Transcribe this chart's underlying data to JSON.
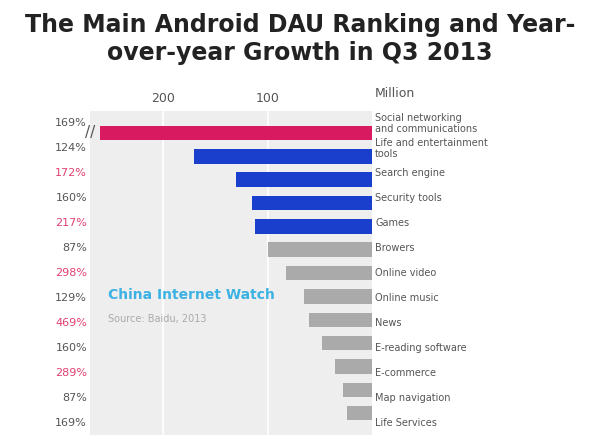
{
  "title": "The Main Android DAU Ranking and Year-\nover-year Growth in Q3 2013",
  "categories": [
    "Social networking\nand communications",
    "Life and entertainment\ntools",
    "Search engine",
    "Security tools",
    "Games",
    "Browers",
    "Online video",
    "Online music",
    "News",
    "E-reading software",
    "E-commerce",
    "Map navigation",
    "Life Services"
  ],
  "values": [
    260,
    170,
    130,
    115,
    112,
    100,
    82,
    65,
    60,
    48,
    35,
    28,
    24
  ],
  "bar_colors": [
    "#d81b60",
    "#1a3fcc",
    "#1a3fcc",
    "#1a3fcc",
    "#1a3fcc",
    "#aaaaaa",
    "#aaaaaa",
    "#aaaaaa",
    "#aaaaaa",
    "#aaaaaa",
    "#aaaaaa",
    "#aaaaaa",
    "#aaaaaa"
  ],
  "growth_labels": [
    "169%",
    "124%",
    "172%",
    "160%",
    "217%",
    "87%",
    "298%",
    "129%",
    "469%",
    "160%",
    "289%",
    "87%",
    "169%"
  ],
  "growth_colors": [
    "#555555",
    "#555555",
    "#e04070",
    "#555555",
    "#e04070",
    "#555555",
    "#e04070",
    "#555555",
    "#e04070",
    "#555555",
    "#e04070",
    "#555555",
    "#555555"
  ],
  "x_axis_ticks": [
    200,
    100
  ],
  "xlim_max": 270,
  "bg_color": "#eeeeee",
  "title_fontsize": 17,
  "watermark_text": "China Internet Watch",
  "source_text": "Source: Baidu, 2013",
  "break_symbol": "//"
}
